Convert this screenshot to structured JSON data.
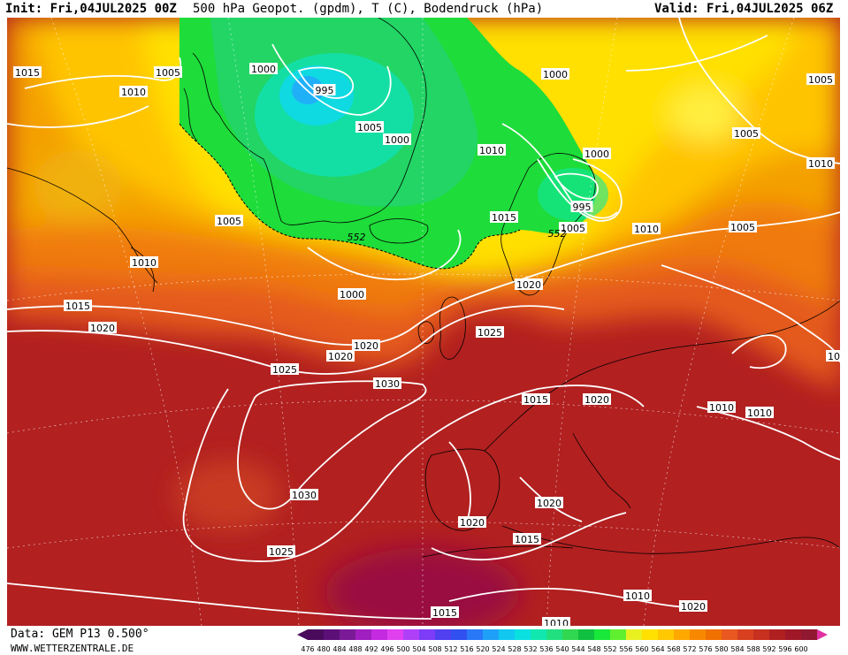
{
  "header": {
    "init": "Init: Fri,04JUL2025 00Z",
    "title": "500 hPa Geopot. (gpdm), T (C), Bodendruck (hPa)",
    "valid": "Valid: Fri,04JUL2025 06Z"
  },
  "footer": {
    "data_source": "Data: GEM P13 0.500°",
    "website": "WWW.WETTERZENTRALE.DE"
  },
  "legend": {
    "values": [
      "476",
      "480",
      "484",
      "488",
      "492",
      "496",
      "500",
      "504",
      "508",
      "512",
      "516",
      "520",
      "524",
      "528",
      "532",
      "536",
      "540",
      "544",
      "548",
      "552",
      "556",
      "560",
      "564",
      "568",
      "572",
      "576",
      "580",
      "584",
      "588",
      "592",
      "596",
      "600"
    ],
    "colors": [
      "#4a0b5c",
      "#5c0f78",
      "#7a1a96",
      "#a01fc0",
      "#c42ae0",
      "#e040f0",
      "#b040f8",
      "#7d3cf8",
      "#5040f0",
      "#3050f0",
      "#2878f8",
      "#1fa0f8",
      "#10c8f0",
      "#0ae0e0",
      "#10e8b0",
      "#20e080",
      "#30d850",
      "#10c040",
      "#18e838",
      "#60f030",
      "#e8f020",
      "#ffe000",
      "#ffc800",
      "#ffa800",
      "#f88800",
      "#f07000",
      "#e85820",
      "#d84020",
      "#c83020",
      "#b02020",
      "#a01828",
      "#901830"
    ]
  },
  "contour_labels": {
    "pressure": [
      "1015",
      "1005",
      "1010",
      "1000",
      "995",
      "1005",
      "1000",
      "1010",
      "1000",
      "995",
      "1005",
      "1015",
      "1010",
      "1015",
      "1020",
      "1025",
      "1030",
      "1030",
      "1025",
      "1020",
      "1020",
      "1025",
      "1020",
      "1015",
      "1010",
      "1010",
      "1005",
      "10",
      "1020",
      "1020",
      "1020",
      "1015",
      "1015",
      "1010",
      "1020",
      "1010",
      "1010",
      "1010",
      "1005",
      "1005",
      "1005",
      "1000",
      "1000"
    ],
    "geopotential": [
      "552",
      "552"
    ]
  }
}
